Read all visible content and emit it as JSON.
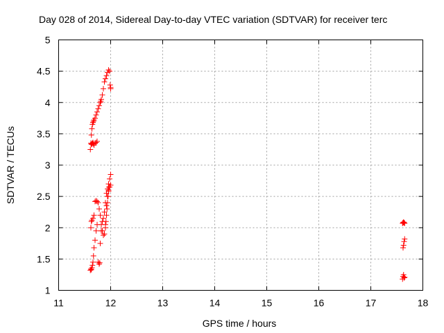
{
  "chart_data": {
    "type": "scatter",
    "title": "Day 028 of 2014, Sidereal Day-to-day VTEC variation (SDTVAR) for receiver terc",
    "xlabel": "GPS time / hours",
    "ylabel": "SDTVAR / TECUs",
    "xlim": [
      11,
      18
    ],
    "ylim": [
      1,
      5
    ],
    "xticks": [
      "11",
      "12",
      "13",
      "14",
      "15",
      "16",
      "17",
      "18"
    ],
    "yticks": [
      "1",
      "1.5",
      "2",
      "2.5",
      "3",
      "3.5",
      "4",
      "4.5",
      "5"
    ],
    "grid": true,
    "marker": "+",
    "color": "#ff0000",
    "series": [
      {
        "x": [
          11.61,
          11.62,
          11.63,
          11.64,
          11.65,
          11.66,
          11.67,
          11.68,
          11.7,
          11.72,
          11.74,
          11.76,
          11.78,
          11.8,
          11.81,
          11.82,
          11.84,
          11.86,
          11.88,
          11.9,
          11.92,
          11.94,
          11.96,
          11.98,
          11.99,
          12.0,
          12.0,
          11.63,
          11.64,
          11.65,
          11.66,
          11.67,
          11.68,
          11.7,
          11.72,
          11.74,
          11.61,
          11.62,
          11.63,
          11.64,
          11.65,
          11.66,
          11.67,
          11.68,
          11.7,
          11.72,
          11.74,
          11.76,
          11.78,
          11.79,
          11.8,
          11.82,
          11.84,
          11.86,
          11.88,
          11.9,
          11.92,
          11.94,
          11.96,
          11.98,
          12.0,
          11.62,
          11.63,
          11.64,
          11.66,
          11.68,
          11.7,
          11.72,
          11.74,
          11.76,
          11.78,
          11.8,
          11.82,
          11.84,
          11.86,
          11.88,
          11.9,
          11.92,
          11.94,
          11.96,
          11.98,
          12.0,
          11.9,
          11.91,
          11.92,
          11.93,
          11.94,
          11.95,
          11.96,
          11.97,
          17.61,
          17.62,
          17.63,
          17.64,
          17.65,
          17.62,
          17.63,
          17.64,
          17.65,
          17.61,
          17.62,
          17.63,
          17.64,
          17.65
        ],
        "y": [
          3.25,
          3.35,
          3.48,
          3.58,
          3.65,
          3.68,
          3.7,
          3.72,
          3.75,
          3.8,
          3.85,
          3.9,
          3.95,
          4.0,
          4.02,
          4.05,
          4.12,
          4.22,
          4.33,
          4.38,
          4.43,
          4.48,
          4.52,
          4.5,
          4.28,
          4.24,
          4.22,
          3.33,
          3.34,
          3.35,
          3.36,
          3.34,
          3.32,
          3.35,
          3.36,
          3.38,
          1.32,
          1.34,
          1.33,
          1.36,
          1.4,
          1.45,
          1.55,
          1.68,
          1.8,
          1.95,
          2.05,
          1.45,
          1.42,
          1.44,
          1.75,
          1.95,
          2.1,
          2.15,
          2.25,
          2.4,
          2.55,
          2.62,
          2.7,
          2.78,
          2.85,
          2.0,
          2.1,
          2.12,
          2.15,
          2.2,
          2.42,
          2.43,
          2.42,
          2.4,
          2.3,
          2.2,
          2.05,
          1.95,
          1.88,
          1.9,
          2.05,
          2.35,
          2.5,
          2.58,
          2.65,
          2.68,
          2.0,
          2.1,
          2.2,
          2.3,
          2.4,
          2.5,
          2.6,
          2.65,
          2.07,
          2.08,
          2.09,
          2.08,
          2.07,
          1.68,
          1.72,
          1.78,
          1.82,
          1.18,
          1.22,
          1.25,
          1.2,
          1.21
        ]
      }
    ]
  }
}
